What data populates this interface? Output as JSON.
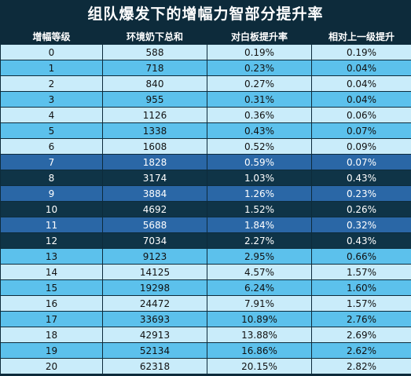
{
  "title": "组队爆发下的增幅力智部分提升率",
  "headers": [
    "增幅等级",
    "环境奶下总和",
    "对白板提升率",
    "相对上一级提升"
  ],
  "rows": [
    [
      "0",
      "588",
      "0.19%",
      "0.19%"
    ],
    [
      "1",
      "718",
      "0.23%",
      "0.04%"
    ],
    [
      "2",
      "840",
      "0.27%",
      "0.04%"
    ],
    [
      "3",
      "955",
      "0.31%",
      "0.04%"
    ],
    [
      "4",
      "1126",
      "0.36%",
      "0.06%"
    ],
    [
      "5",
      "1338",
      "0.43%",
      "0.07%"
    ],
    [
      "6",
      "1608",
      "0.52%",
      "0.09%"
    ],
    [
      "7",
      "1828",
      "0.59%",
      "0.07%"
    ],
    [
      "8",
      "3174",
      "1.03%",
      "0.43%"
    ],
    [
      "9",
      "3884",
      "1.26%",
      "0.23%"
    ],
    [
      "10",
      "4692",
      "1.52%",
      "0.26%"
    ],
    [
      "11",
      "5688",
      "1.84%",
      "0.32%"
    ],
    [
      "12",
      "7034",
      "2.27%",
      "0.43%"
    ],
    [
      "13",
      "9123",
      "2.95%",
      "0.66%"
    ],
    [
      "14",
      "14125",
      "4.57%",
      "1.57%"
    ],
    [
      "15",
      "19298",
      "6.24%",
      "1.60%"
    ],
    [
      "16",
      "24472",
      "7.91%",
      "1.57%"
    ],
    [
      "17",
      "33693",
      "10.89%",
      "2.76%"
    ],
    [
      "18",
      "42913",
      "13.88%",
      "2.69%"
    ],
    [
      "19",
      "52134",
      "16.86%",
      "2.62%"
    ],
    [
      "20",
      "62318",
      "20.15%",
      "2.82%"
    ]
  ],
  "row_styles": [
    "a",
    "b",
    "a",
    "b",
    "a",
    "b",
    "a",
    "c",
    "d",
    "c",
    "d",
    "c",
    "d",
    "b",
    "a",
    "b",
    "a",
    "b",
    "a",
    "b",
    "a"
  ],
  "colors": {
    "background": "#0d2b3b",
    "row_light": "#c9ecfa",
    "row_mid": "#5cc1ec",
    "row_blue": "#2a67a6",
    "row_dark": "#0f3447"
  }
}
